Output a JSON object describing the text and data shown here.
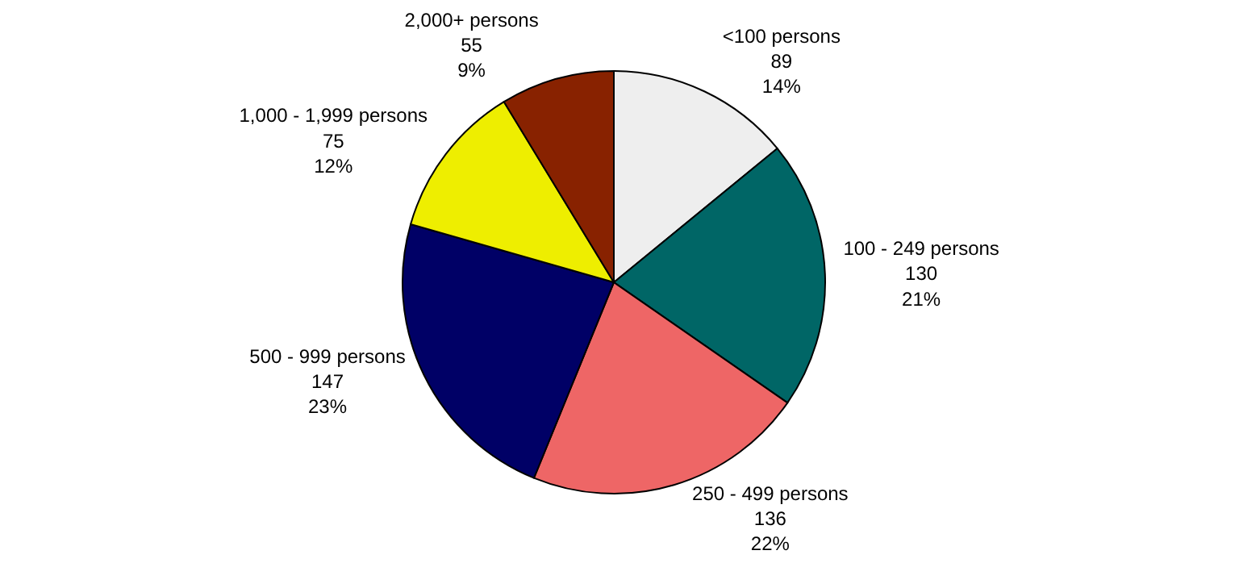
{
  "chart_data": {
    "type": "pie",
    "categories": [
      "<100 persons",
      "100 - 249 persons",
      "250 - 499 persons",
      "500 - 999 persons",
      "1,000 - 1,999 persons",
      "2,000+ persons"
    ],
    "values": [
      89,
      130,
      136,
      147,
      75,
      55
    ],
    "value_labels": [
      "89\n14%",
      "130\n21%",
      "136\n22%",
      "147\n23%",
      "75\n12%",
      "55\n9%"
    ],
    "colors": [
      "#eeeeee",
      "#006666",
      "#ee6666",
      "#000066",
      "#eeee00",
      "#882200"
    ],
    "legend": false
  }
}
